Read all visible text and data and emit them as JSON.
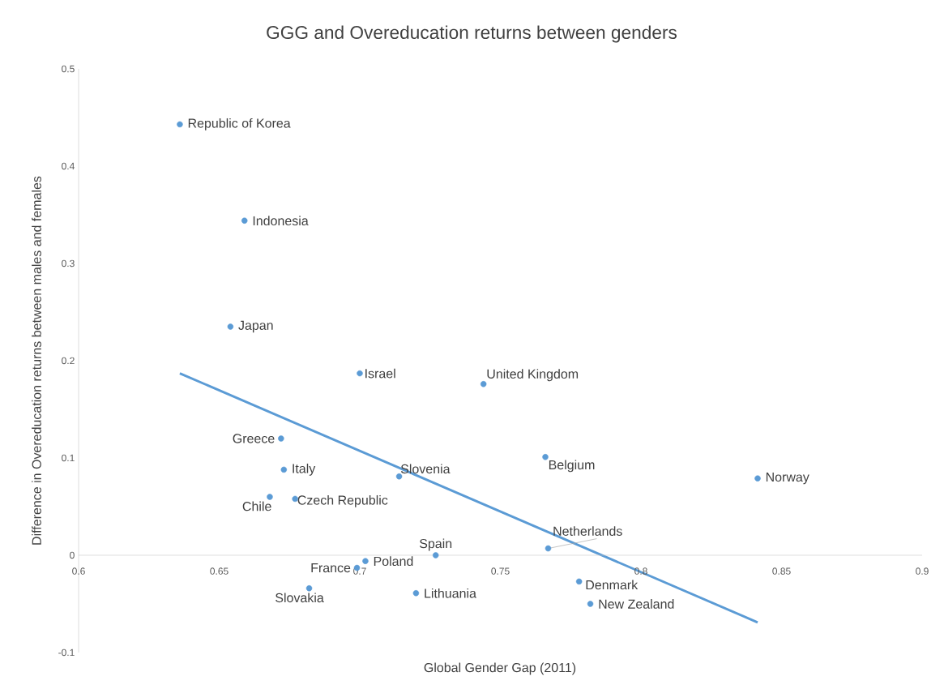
{
  "chart_data": {
    "type": "scatter",
    "title": "GGG and Overeducation returns between genders",
    "xlabel": "Global Gender Gap (2011)",
    "ylabel": "Difference in Overeducation returns between males and females",
    "xlim": [
      0.6,
      0.9
    ],
    "ylim": [
      -0.1,
      0.5
    ],
    "xticks": [
      0.6,
      0.65,
      0.7,
      0.75,
      0.8,
      0.85,
      0.9
    ],
    "yticks": [
      -0.1,
      0,
      0.1,
      0.2,
      0.3,
      0.4,
      0.5
    ],
    "series": [
      {
        "color": "#5b9bd5",
        "marker": "circle",
        "x": [
          0.636,
          0.659,
          0.654,
          0.7,
          0.744,
          0.672,
          0.673,
          0.668,
          0.677,
          0.714,
          0.766,
          0.8415,
          0.767,
          0.727,
          0.702,
          0.699,
          0.682,
          0.72,
          0.778,
          0.782
        ],
        "values": [
          0.443,
          0.344,
          0.235,
          0.187,
          0.176,
          0.12,
          0.088,
          0.06,
          0.058,
          0.081,
          0.101,
          0.079,
          0.007,
          0.0,
          -0.006,
          -0.013,
          -0.034,
          -0.039,
          -0.027,
          -0.05
        ]
      },
      {
        "type": "line",
        "color": "#5b9bd5",
        "marker": "none",
        "x": [
          0.636,
          0.8415
        ],
        "values": [
          0.187,
          -0.069
        ]
      }
    ],
    "annotations": [
      {
        "text": "Republic of Korea",
        "x": 0.636,
        "y": 0.443
      },
      {
        "text": "Indonesia",
        "x": 0.659,
        "y": 0.344
      },
      {
        "text": "Japan",
        "x": 0.654,
        "y": 0.235
      },
      {
        "text": "Israel",
        "x": 0.7,
        "y": 0.187
      },
      {
        "text": "United Kingdom",
        "x": 0.744,
        "y": 0.176
      },
      {
        "text": "Greece",
        "x": 0.672,
        "y": 0.12
      },
      {
        "text": "Italy",
        "x": 0.673,
        "y": 0.088
      },
      {
        "text": "Chile",
        "x": 0.668,
        "y": 0.06
      },
      {
        "text": "Czech Republic",
        "x": 0.677,
        "y": 0.058
      },
      {
        "text": "Slovenia",
        "x": 0.714,
        "y": 0.081
      },
      {
        "text": "Belgium",
        "x": 0.766,
        "y": 0.101
      },
      {
        "text": "Norway",
        "x": 0.8415,
        "y": 0.079
      },
      {
        "text": "Netherlands",
        "x": 0.767,
        "y": 0.007
      },
      {
        "text": "Spain",
        "x": 0.727,
        "y": 0.0
      },
      {
        "text": "Poland",
        "x": 0.702,
        "y": -0.006
      },
      {
        "text": "France",
        "x": 0.699,
        "y": -0.013
      },
      {
        "text": "Slovakia",
        "x": 0.682,
        "y": -0.034
      },
      {
        "text": "Lithuania",
        "x": 0.72,
        "y": -0.039
      },
      {
        "text": "Denmark",
        "x": 0.778,
        "y": -0.027
      },
      {
        "text": "New Zealand",
        "x": 0.782,
        "y": -0.05
      }
    ]
  }
}
